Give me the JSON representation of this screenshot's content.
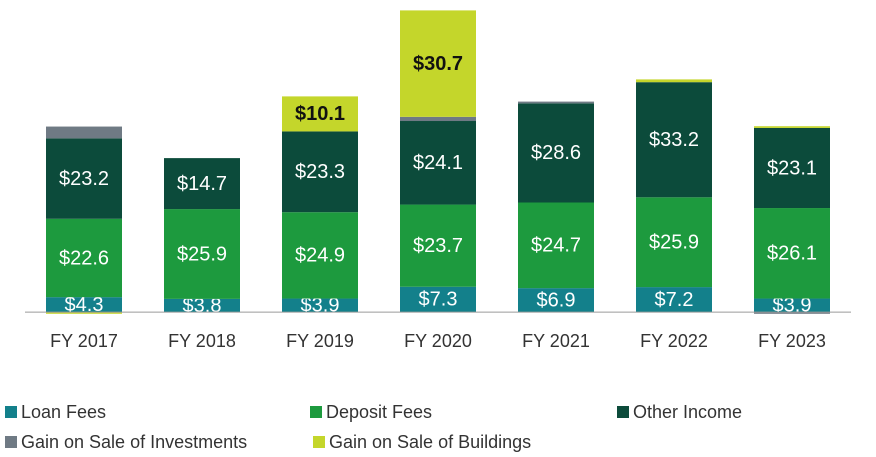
{
  "chart_data": {
    "type": "stacked_bar",
    "categories": [
      "FY 2017",
      "FY 2018",
      "FY 2019",
      "FY 2020",
      "FY 2021",
      "FY 2022",
      "FY 2023"
    ],
    "ylim": [
      -2,
      90
    ],
    "legend_position": "bottom",
    "series": [
      {
        "name": "Loan Fees",
        "color": "#13808b",
        "values": [
          4.3,
          3.8,
          3.9,
          7.3,
          6.9,
          7.2,
          3.9
        ],
        "value_labels": [
          "$4.3",
          "$3.8",
          "$3.9",
          "$7.3",
          "$6.9",
          "$7.2",
          "$3.9"
        ]
      },
      {
        "name": "Deposit Fees",
        "color": "#1d9a3e",
        "values": [
          22.6,
          25.9,
          24.9,
          23.7,
          24.7,
          25.9,
          26.1
        ],
        "value_labels": [
          "$22.6",
          "$25.9",
          "$24.9",
          "$23.7",
          "$24.7",
          "$25.9",
          "$26.1"
        ]
      },
      {
        "name": "Other Income",
        "color": "#0c4b3b",
        "values": [
          23.2,
          14.7,
          23.3,
          24.1,
          28.6,
          33.2,
          23.1
        ],
        "value_labels": [
          "$23.2",
          "$14.7",
          "$23.3",
          "$24.1",
          "$28.6",
          "$33.2",
          "$23.1"
        ]
      },
      {
        "name": "Gain on Sale of Investments",
        "color": "#6f7a84",
        "values": [
          3.4,
          0,
          0,
          1.2,
          0.5,
          0,
          -0.5
        ],
        "value_labels": [
          null,
          null,
          null,
          null,
          null,
          null,
          null
        ]
      },
      {
        "name": "Gain on Sale of Buildings",
        "color": "#c4d62b",
        "values": [
          -0.5,
          0,
          10.1,
          30.7,
          0,
          0.8,
          0.5
        ],
        "value_labels": [
          null,
          null,
          "$10.1",
          "$30.7",
          null,
          null,
          null
        ]
      }
    ]
  }
}
